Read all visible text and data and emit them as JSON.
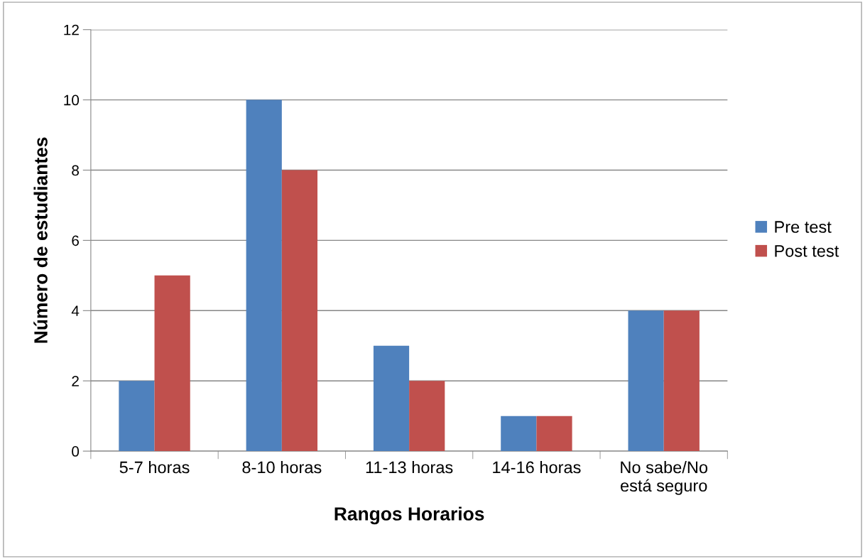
{
  "chart_data": {
    "type": "bar",
    "xlabel": "Rangos Horarios",
    "ylabel": "Número de estudiantes",
    "categories": [
      "5-7 horas",
      "8-10 horas",
      "11-13 horas",
      "14-16 horas",
      "No sabe/No\nestá seguro"
    ],
    "series": [
      {
        "name": "Pre test",
        "color": "#4f81bd",
        "values": [
          2,
          10,
          3,
          1,
          4
        ]
      },
      {
        "name": "Post test",
        "color": "#c0504d",
        "values": [
          5,
          8,
          2,
          1,
          4
        ]
      }
    ],
    "ylim": [
      0,
      12
    ],
    "yticks": [
      0,
      2,
      4,
      6,
      8,
      10,
      12
    ],
    "grid": "y",
    "legend": "right"
  }
}
